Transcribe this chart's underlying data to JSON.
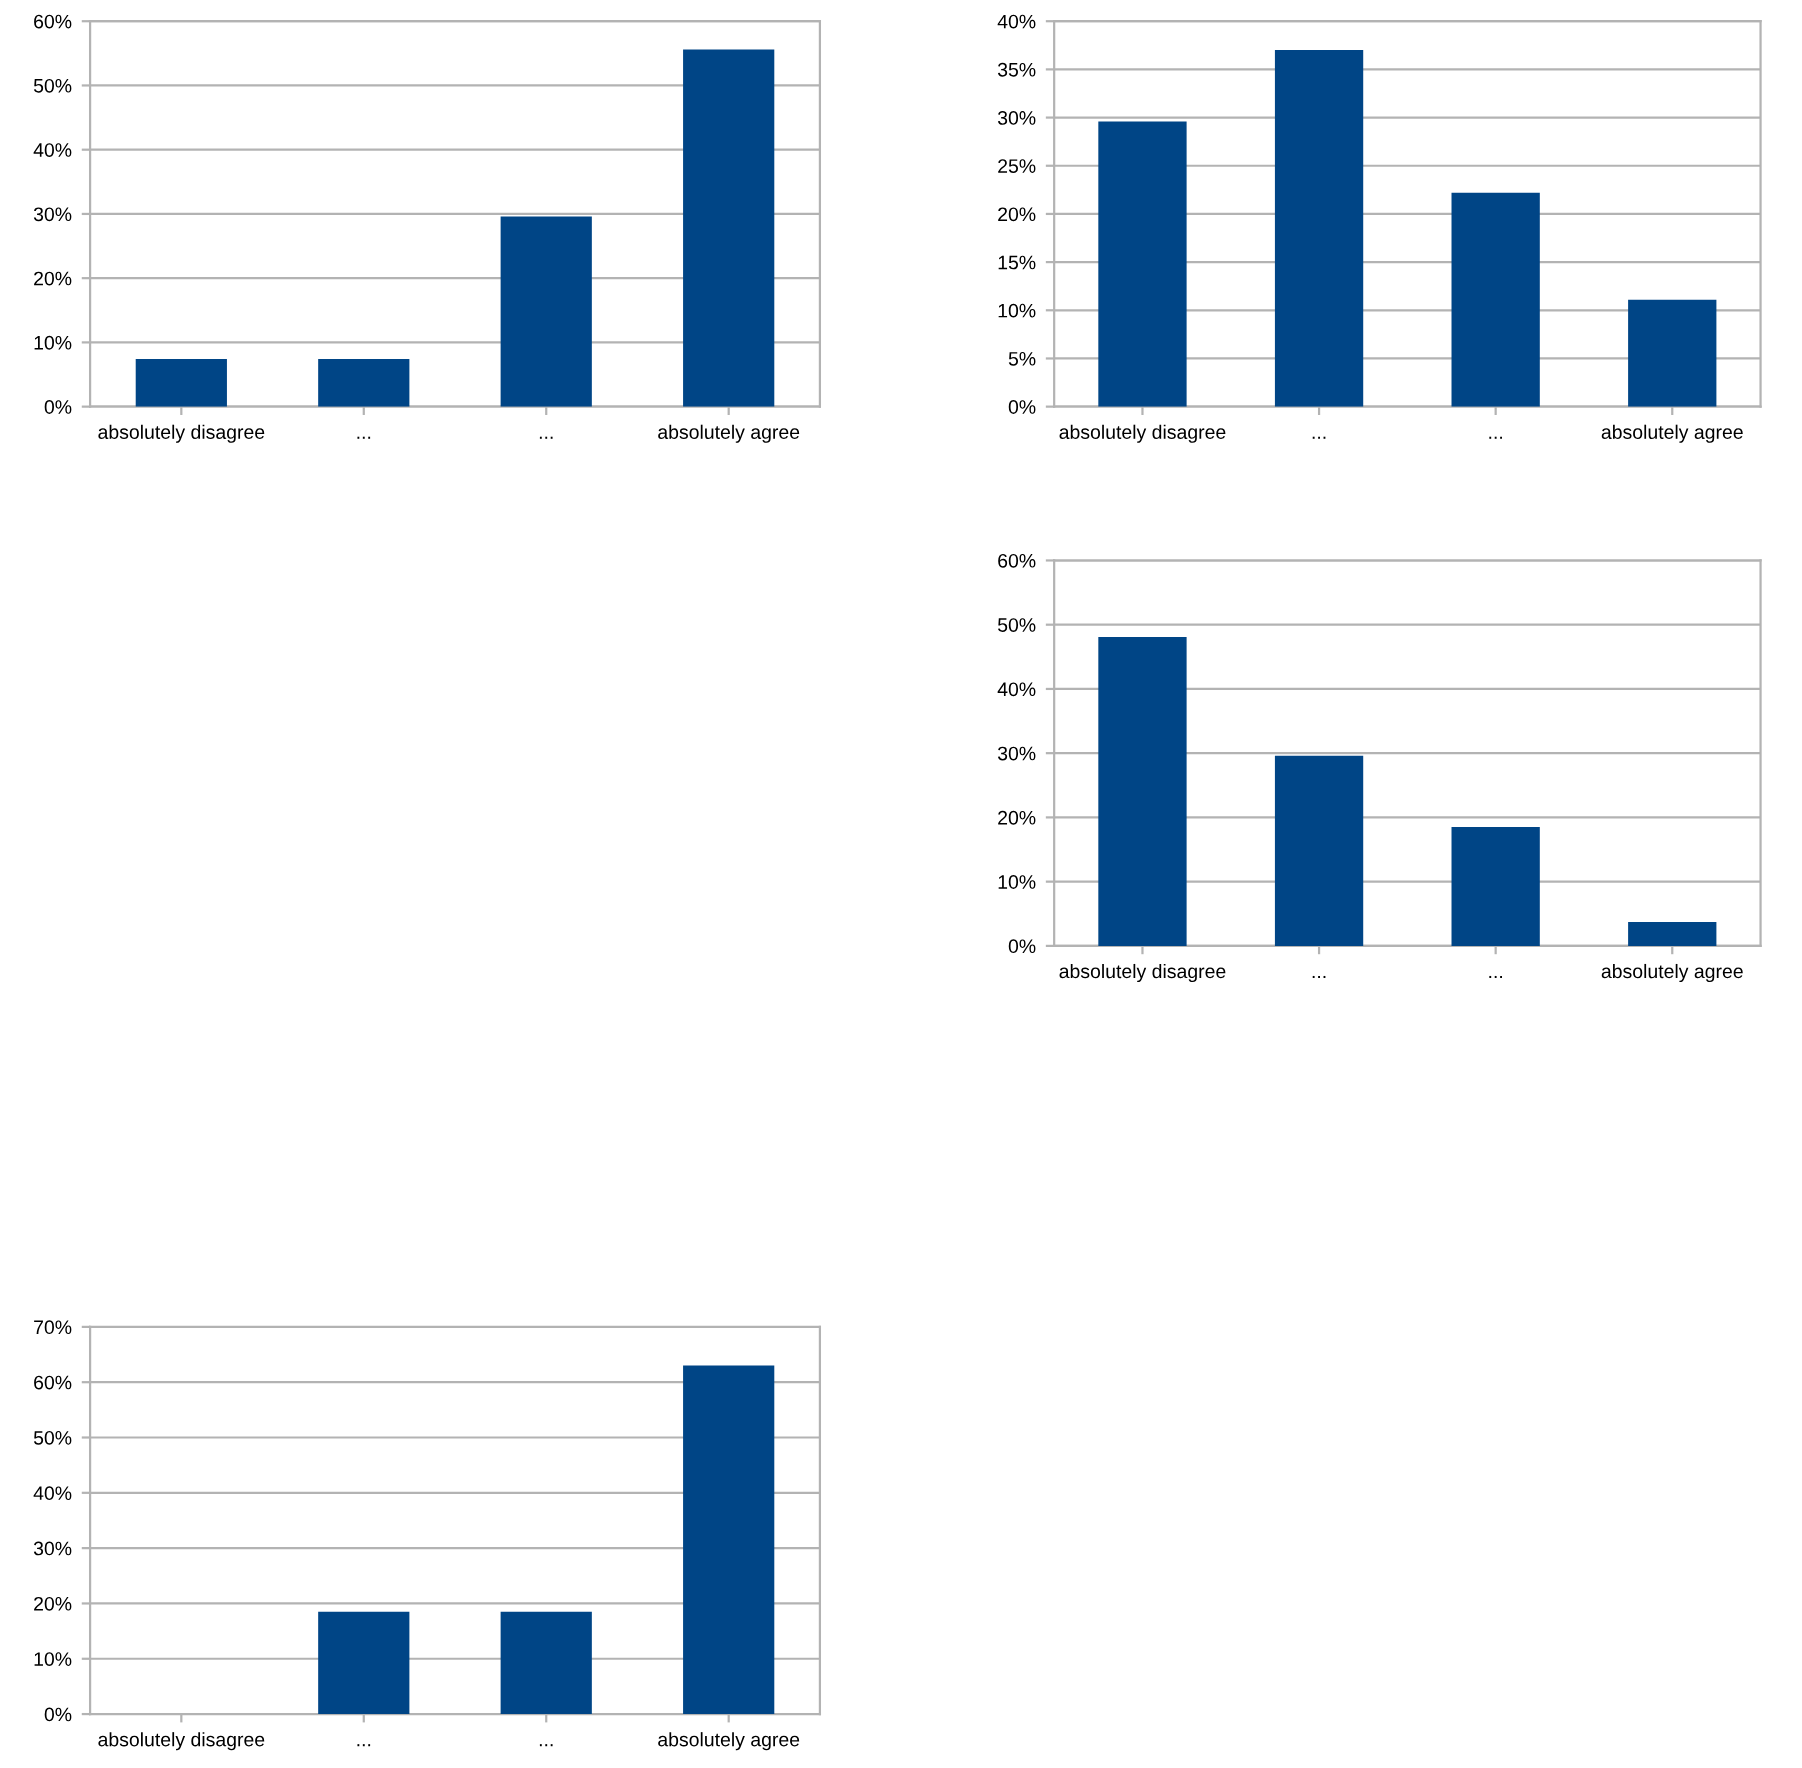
{
  "chart_data": [
    {
      "type": "bar",
      "categories": [
        "absolutely disagree",
        "...",
        "...",
        "absolutely agree"
      ],
      "values": [
        7.4,
        7.4,
        29.6,
        55.6
      ],
      "color": "#004586",
      "ylim": [
        0,
        60
      ],
      "yticks": [
        {
          "value": 0,
          "label": "0%"
        },
        {
          "value": 10,
          "label": "10%"
        },
        {
          "value": 20,
          "label": "20%"
        },
        {
          "value": 30,
          "label": "30%"
        },
        {
          "value": 40,
          "label": "40%"
        },
        {
          "value": 50,
          "label": "50%"
        },
        {
          "value": 60,
          "label": "60%"
        }
      ],
      "grid": "y"
    },
    {
      "type": "bar",
      "categories": [
        "absolutely disagree",
        "...",
        "...",
        "absolutely agree"
      ],
      "values": [
        29.6,
        37.0,
        22.2,
        11.1
      ],
      "color": "#004586",
      "ylim": [
        0,
        40
      ],
      "yticks": [
        {
          "value": 0,
          "label": "0%"
        },
        {
          "value": 5,
          "label": "5%"
        },
        {
          "value": 10,
          "label": "10%"
        },
        {
          "value": 15,
          "label": "15%"
        },
        {
          "value": 20,
          "label": "20%"
        },
        {
          "value": 25,
          "label": "25%"
        },
        {
          "value": 30,
          "label": "30%"
        },
        {
          "value": 35,
          "label": "35%"
        },
        {
          "value": 40,
          "label": "40%"
        }
      ],
      "grid": "y"
    },
    {
      "type": "bar",
      "categories": [
        "absolutely disagree",
        "...",
        "...",
        "absolutely agree"
      ],
      "values": [
        48.1,
        29.6,
        18.5,
        3.7
      ],
      "color": "#004586",
      "ylim": [
        0,
        60
      ],
      "yticks": [
        {
          "value": 0,
          "label": "0%"
        },
        {
          "value": 10,
          "label": "10%"
        },
        {
          "value": 20,
          "label": "20%"
        },
        {
          "value": 30,
          "label": "30%"
        },
        {
          "value": 40,
          "label": "40%"
        },
        {
          "value": 50,
          "label": "50%"
        },
        {
          "value": 60,
          "label": "60%"
        }
      ],
      "grid": "y"
    },
    {
      "type": "bar",
      "categories": [
        "absolutely disagree",
        "...",
        "...",
        "absolutely agree"
      ],
      "values": [
        0,
        18.5,
        18.5,
        63.0
      ],
      "color": "#004586",
      "ylim": [
        0,
        70
      ],
      "yticks": [
        {
          "value": 0,
          "label": "0%"
        },
        {
          "value": 10,
          "label": "10%"
        },
        {
          "value": 20,
          "label": "20%"
        },
        {
          "value": 30,
          "label": "30%"
        },
        {
          "value": 40,
          "label": "40%"
        },
        {
          "value": 50,
          "label": "50%"
        },
        {
          "value": 60,
          "label": "60%"
        },
        {
          "value": 70,
          "label": "70%"
        }
      ],
      "grid": "y"
    }
  ]
}
